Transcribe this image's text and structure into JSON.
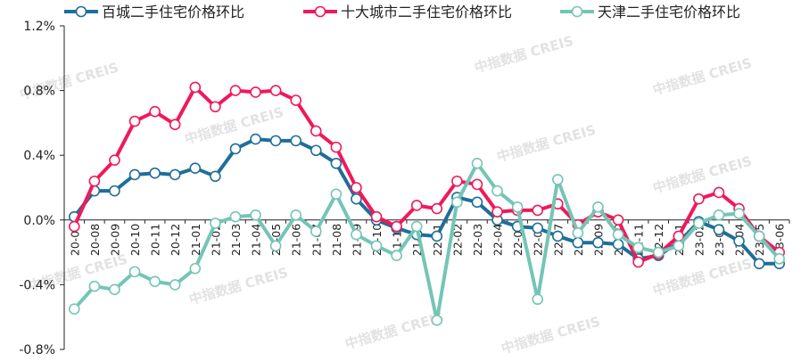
{
  "watermark": "中指数据 CREIS",
  "chart_data": {
    "type": "line",
    "ylim": [
      -0.8,
      1.2
    ],
    "yticks": [
      1.2,
      0.8,
      0.4,
      0.0,
      -0.4,
      -0.8
    ],
    "ytick_labels": [
      "1.2%",
      "0.8%",
      "0.4%",
      "0.0%",
      "-0.4%",
      "-0.8%"
    ],
    "grid": false,
    "legend_position": "top",
    "categories": [
      "20-07",
      "20-08",
      "20-09",
      "20-10",
      "20-11",
      "20-12",
      "21-01",
      "21-02",
      "21-03",
      "21-04",
      "21-05",
      "21-06",
      "21-07",
      "21-08",
      "21-09",
      "21-10",
      "21-11",
      "21-12",
      "22-01",
      "22-02",
      "22-03",
      "22-04",
      "22-05",
      "22-06",
      "22-07",
      "22-08",
      "22-09",
      "22-10",
      "22-11",
      "22-12",
      "23-01",
      "23-02",
      "23-03",
      "23-04",
      "23-05",
      "23-06"
    ],
    "series": [
      {
        "name": "百城二手住宅价格环比",
        "color": "#1f6e99",
        "values": [
          0.02,
          0.18,
          0.18,
          0.28,
          0.29,
          0.28,
          0.32,
          0.27,
          0.44,
          0.5,
          0.49,
          0.49,
          0.43,
          0.35,
          0.13,
          0.0,
          -0.05,
          -0.09,
          -0.1,
          0.14,
          0.11,
          0.0,
          -0.04,
          -0.05,
          -0.1,
          -0.14,
          -0.14,
          -0.15,
          -0.24,
          -0.22,
          -0.14,
          -0.01,
          -0.06,
          -0.13,
          -0.27,
          -0.27
        ]
      },
      {
        "name": "十大城市二手住宅价格环比",
        "color": "#f0195a",
        "values": [
          -0.04,
          0.24,
          0.37,
          0.61,
          0.67,
          0.59,
          0.82,
          0.7,
          0.8,
          0.79,
          0.8,
          0.74,
          0.55,
          0.45,
          0.2,
          0.02,
          -0.04,
          0.09,
          0.07,
          0.24,
          0.22,
          0.05,
          0.06,
          0.06,
          0.1,
          -0.03,
          0.05,
          0.0,
          -0.26,
          -0.21,
          -0.1,
          0.13,
          0.17,
          0.07,
          -0.1,
          -0.2
        ]
      },
      {
        "name": "天津二手住宅价格环比",
        "color": "#74c5b5",
        "values": [
          -0.55,
          -0.41,
          -0.43,
          -0.32,
          -0.38,
          -0.4,
          -0.3,
          -0.02,
          0.02,
          0.03,
          -0.16,
          0.03,
          -0.07,
          0.16,
          -0.09,
          -0.16,
          -0.22,
          -0.04,
          -0.62,
          0.11,
          0.35,
          0.18,
          0.08,
          -0.49,
          0.25,
          -0.08,
          0.08,
          -0.09,
          -0.17,
          -0.2,
          -0.16,
          -0.02,
          0.03,
          0.04,
          -0.1,
          -0.24
        ]
      }
    ]
  }
}
